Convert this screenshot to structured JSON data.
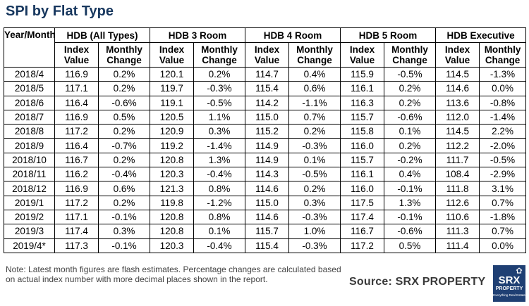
{
  "title": "SPI by Flat Type",
  "table": {
    "corner_header": "Year/Month",
    "groups": [
      "HDB (All Types)",
      "HDB 3 Room",
      "HDB 4 Room",
      "HDB 5 Room",
      "HDB Executive"
    ],
    "sub_headers": [
      "Index Value",
      "Monthly Change"
    ]
  },
  "chart_data": {
    "type": "table",
    "title": "SPI by Flat Type",
    "columns": [
      "Year/Month",
      "HDB (All Types) Index Value",
      "HDB (All Types) Monthly Change",
      "HDB 3 Room Index Value",
      "HDB 3 Room Monthly Change",
      "HDB 4 Room Index Value",
      "HDB 4 Room Monthly Change",
      "HDB 5 Room Index Value",
      "HDB 5 Room Monthly Change",
      "HDB Executive Index Value",
      "HDB Executive Monthly Change"
    ],
    "rows": [
      [
        "2018/4",
        "116.9",
        "0.2%",
        "120.1",
        "0.2%",
        "114.7",
        "0.4%",
        "115.9",
        "-0.5%",
        "114.5",
        "-1.3%"
      ],
      [
        "2018/5",
        "117.1",
        "0.2%",
        "119.7",
        "-0.3%",
        "115.4",
        "0.6%",
        "116.1",
        "0.2%",
        "114.6",
        "0.0%"
      ],
      [
        "2018/6",
        "116.4",
        "-0.6%",
        "119.1",
        "-0.5%",
        "114.2",
        "-1.1%",
        "116.3",
        "0.2%",
        "113.6",
        "-0.8%"
      ],
      [
        "2018/7",
        "116.9",
        "0.5%",
        "120.5",
        "1.1%",
        "115.0",
        "0.7%",
        "115.7",
        "-0.6%",
        "112.0",
        "-1.4%"
      ],
      [
        "2018/8",
        "117.2",
        "0.2%",
        "120.9",
        "0.3%",
        "115.2",
        "0.2%",
        "115.8",
        "0.1%",
        "114.5",
        "2.2%"
      ],
      [
        "2018/9",
        "116.4",
        "-0.7%",
        "119.2",
        "-1.4%",
        "114.9",
        "-0.3%",
        "116.0",
        "0.2%",
        "112.2",
        "-2.0%"
      ],
      [
        "2018/10",
        "116.7",
        "0.2%",
        "120.8",
        "1.3%",
        "114.9",
        "0.1%",
        "115.7",
        "-0.2%",
        "111.7",
        "-0.5%"
      ],
      [
        "2018/11",
        "116.2",
        "-0.4%",
        "120.3",
        "-0.4%",
        "114.3",
        "-0.5%",
        "116.1",
        "0.4%",
        "108.4",
        "-2.9%"
      ],
      [
        "2018/12",
        "116.9",
        "0.6%",
        "121.3",
        "0.8%",
        "114.6",
        "0.2%",
        "116.0",
        "-0.1%",
        "111.8",
        "3.1%"
      ],
      [
        "2019/1",
        "117.2",
        "0.2%",
        "119.8",
        "-1.2%",
        "115.0",
        "0.3%",
        "117.5",
        "1.3%",
        "112.6",
        "0.7%"
      ],
      [
        "2019/2",
        "117.1",
        "-0.1%",
        "120.8",
        "0.8%",
        "114.6",
        "-0.3%",
        "117.4",
        "-0.1%",
        "110.6",
        "-1.8%"
      ],
      [
        "2019/3",
        "117.4",
        "0.3%",
        "120.8",
        "0.1%",
        "115.7",
        "1.0%",
        "116.7",
        "-0.6%",
        "111.3",
        "0.7%"
      ],
      [
        "2019/4*",
        "117.3",
        "-0.1%",
        "120.3",
        "-0.4%",
        "115.4",
        "-0.3%",
        "117.2",
        "0.5%",
        "111.4",
        "0.0%"
      ]
    ]
  },
  "note": "Note: Latest month figures are flash estimates. Percentage changes are calculated based on actual index number with more decimal places shown in the report.",
  "source": "Source:  SRX PROPERTY",
  "logo": {
    "line1": "SRX",
    "line2": "PROPERTY",
    "tagline": "Everything Real Estate",
    "bg_color": "#1f3f73"
  },
  "colors": {
    "title": "#17375e",
    "border": "#000000"
  }
}
